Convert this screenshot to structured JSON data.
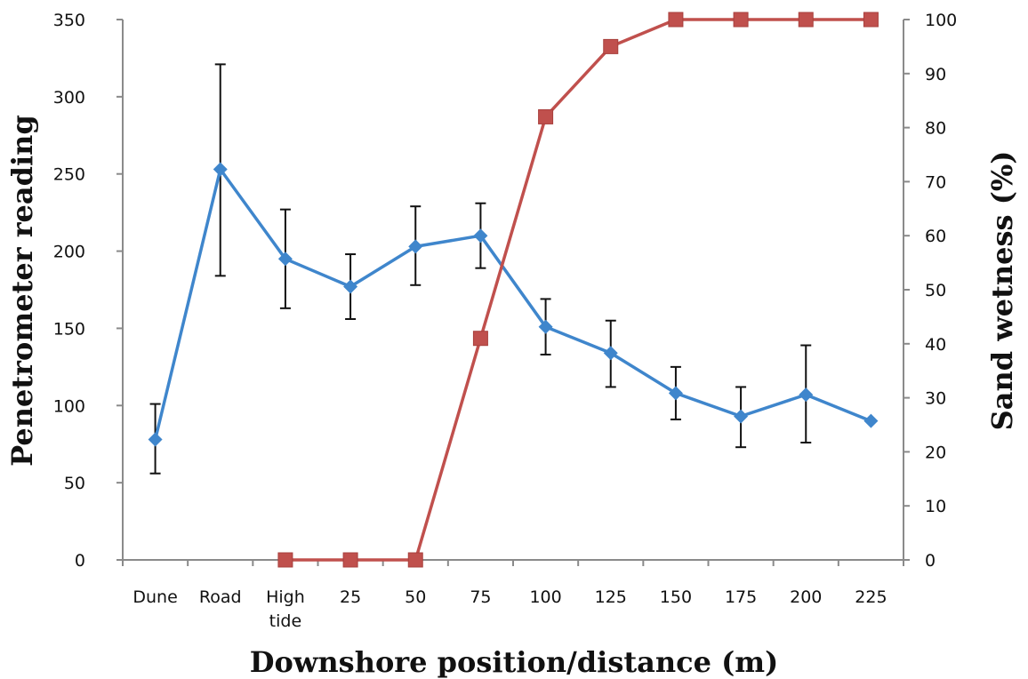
{
  "chart_data": {
    "type": "line",
    "categories": [
      [
        "Dune"
      ],
      [
        "Road"
      ],
      [
        "High",
        "tide"
      ],
      [
        "25"
      ],
      [
        "50"
      ],
      [
        "75"
      ],
      [
        "100"
      ],
      [
        "125"
      ],
      [
        "150"
      ],
      [
        "175"
      ],
      [
        "200"
      ],
      [
        "225"
      ]
    ],
    "xlabel": "Downshore position/distance (m)",
    "ylabel_left": "Penetrometer reading",
    "ylabel_right": "Sand wetness (%)",
    "ylim_left": [
      0,
      350
    ],
    "yticks_left": [
      0,
      50,
      100,
      150,
      200,
      250,
      300,
      350
    ],
    "ylim_right": [
      0,
      100
    ],
    "yticks_right": [
      0,
      10,
      20,
      30,
      40,
      50,
      60,
      70,
      80,
      90,
      100
    ],
    "grid": false,
    "series": [
      {
        "axis": "left",
        "marker": "diamond",
        "color": "#3f86cc",
        "values": [
          78,
          253,
          195,
          177,
          203,
          210,
          151,
          134,
          108,
          93,
          107,
          90
        ],
        "error_low": [
          56,
          184,
          163,
          156,
          178,
          189,
          133,
          112,
          91,
          73,
          76,
          null
        ],
        "error_high": [
          101,
          321,
          227,
          198,
          229,
          231,
          169,
          155,
          125,
          112,
          139,
          null
        ]
      },
      {
        "axis": "right",
        "marker": "square",
        "color": "#c0504d",
        "values": [
          null,
          null,
          0,
          0,
          0,
          41,
          82,
          95,
          100,
          100,
          100,
          100
        ]
      }
    ]
  }
}
